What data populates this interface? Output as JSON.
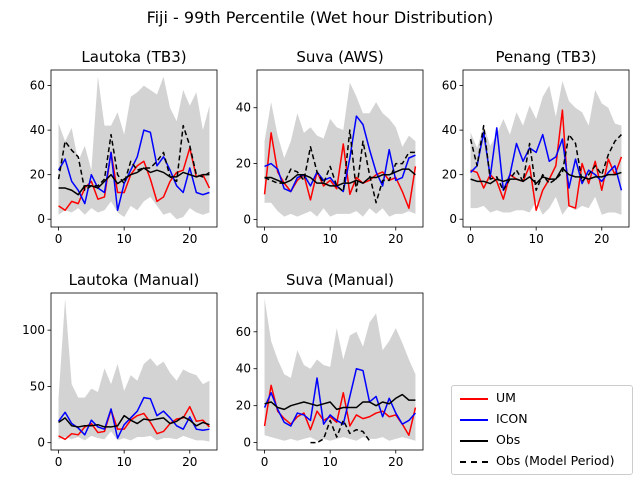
{
  "figure": {
    "title": "Fiji - 99th Percentile (Wet hour Distribution)"
  },
  "legend": {
    "entries": [
      {
        "label": "UM",
        "color": "#ff0000",
        "style": "solid"
      },
      {
        "label": "ICON",
        "color": "#0000ff",
        "style": "solid"
      },
      {
        "label": "Obs",
        "color": "#000000",
        "style": "solid"
      },
      {
        "label": "Obs (Model Period)",
        "color": "#000000",
        "style": "dashed"
      }
    ]
  },
  "colors": {
    "band": "#d3d3d3",
    "um": "#ff0000",
    "icon": "#0000ff",
    "obs": "#000000"
  },
  "chart_data": [
    {
      "type": "line",
      "title": "Lautoka (TB3)",
      "xlim": [
        -1.15,
        24.15
      ],
      "ylim": [
        -3.5,
        67
      ],
      "xticks": [
        0,
        10,
        20
      ],
      "yticks": [
        0,
        20,
        40,
        60
      ],
      "x": [
        0,
        1,
        2,
        3,
        4,
        5,
        6,
        7,
        8,
        9,
        10,
        11,
        12,
        13,
        14,
        15,
        16,
        17,
        18,
        19,
        20,
        21,
        22,
        23
      ],
      "band_upper": [
        43,
        35,
        41,
        26,
        33,
        22,
        64,
        42,
        42,
        48,
        38,
        55,
        57,
        60,
        58,
        56,
        64,
        50,
        44,
        58,
        51,
        57,
        40,
        51
      ],
      "band_lower": [
        2,
        4,
        3,
        5,
        2,
        5,
        3,
        4,
        8,
        3,
        1,
        6,
        4,
        8,
        10,
        6,
        2,
        3,
        0,
        1,
        5,
        3,
        2,
        3
      ],
      "series": [
        {
          "name": "UM",
          "values": [
            6,
            4,
            8,
            7,
            14,
            17,
            9,
            10,
            30,
            12,
            12,
            20,
            24,
            26,
            18,
            8,
            10,
            17,
            21,
            22,
            32,
            19,
            20,
            14
          ]
        },
        {
          "name": "ICON",
          "values": [
            22,
            27,
            17,
            13,
            7,
            20,
            14,
            12,
            30,
            4,
            16,
            22,
            28,
            40,
            39,
            24,
            28,
            22,
            15,
            12,
            23,
            12,
            11,
            12
          ]
        },
        {
          "name": "Obs",
          "values": [
            14,
            14,
            13,
            11,
            15,
            15,
            14,
            17,
            20,
            16,
            18,
            20,
            21,
            23,
            21,
            22,
            21,
            19,
            19,
            21,
            20,
            19,
            20,
            20
          ]
        },
        {
          "name": "Obs (Model Period)",
          "values": [
            18,
            35,
            31,
            28,
            13,
            15,
            15,
            18,
            38,
            20,
            16,
            26,
            22,
            23,
            23,
            26,
            30,
            19,
            17,
            42,
            33,
            20,
            19,
            21
          ]
        }
      ]
    },
    {
      "type": "line",
      "title": "Suva (AWS)",
      "xlim": [
        -1.15,
        24.15
      ],
      "ylim": [
        -2.7,
        53.5
      ],
      "xticks": [
        0,
        10,
        20
      ],
      "yticks": [
        0,
        20,
        40
      ],
      "x": [
        0,
        1,
        2,
        3,
        4,
        5,
        6,
        7,
        8,
        9,
        10,
        11,
        12,
        13,
        14,
        15,
        16,
        17,
        18,
        19,
        20,
        21,
        22,
        23
      ],
      "band_upper": [
        28,
        42,
        30,
        22,
        28,
        38,
        31,
        33,
        30,
        29,
        36,
        33,
        32,
        49,
        44,
        38,
        38,
        42,
        38,
        36,
        33,
        26,
        30,
        28
      ],
      "band_lower": [
        6,
        6,
        3,
        1,
        2,
        1,
        2,
        3,
        1,
        4,
        1,
        2,
        2,
        2,
        3,
        1,
        4,
        2,
        4,
        1,
        2,
        2,
        3,
        2
      ],
      "series": [
        {
          "name": "UM",
          "values": [
            9,
            31,
            17,
            13,
            10,
            14,
            16,
            7,
            17,
            12,
            14,
            11,
            27,
            9,
            15,
            13,
            14,
            16,
            17,
            14,
            15,
            10,
            4,
            19
          ]
        },
        {
          "name": "ICON",
          "values": [
            19,
            20,
            18,
            11,
            10,
            15,
            16,
            12,
            17,
            14,
            15,
            12,
            10,
            22,
            37,
            34,
            25,
            17,
            12,
            25,
            14,
            15,
            22,
            23
          ]
        },
        {
          "name": "Obs",
          "values": [
            15,
            15,
            14,
            13,
            14,
            16,
            16,
            15,
            13,
            13,
            12,
            12,
            13,
            13,
            14,
            13,
            15,
            15,
            16,
            16,
            17,
            18,
            18,
            16
          ]
        },
        {
          "name": "Obs (Model Period)",
          "values": [
            15,
            14,
            13,
            13,
            18,
            17,
            14,
            26,
            17,
            13,
            19,
            12,
            10,
            32,
            10,
            28,
            16,
            6,
            14,
            14,
            20,
            20,
            24,
            24
          ]
        }
      ]
    },
    {
      "type": "line",
      "title": "Penang (TB3)",
      "xlim": [
        -1.15,
        24.15
      ],
      "ylim": [
        -3.5,
        67
      ],
      "xticks": [
        0,
        10,
        20
      ],
      "yticks": [
        0,
        20,
        40,
        60
      ],
      "x": [
        0,
        1,
        2,
        3,
        4,
        5,
        6,
        7,
        8,
        9,
        10,
        11,
        12,
        13,
        14,
        15,
        16,
        17,
        18,
        19,
        20,
        21,
        22,
        23
      ],
      "band_upper": [
        39,
        32,
        42,
        33,
        38,
        45,
        38,
        48,
        42,
        51,
        45,
        55,
        60,
        46,
        62,
        53,
        50,
        48,
        42,
        58,
        52,
        50,
        43,
        42
      ],
      "band_lower": [
        5,
        5,
        6,
        3,
        4,
        3,
        3,
        4,
        4,
        3,
        8,
        2,
        5,
        10,
        2,
        6,
        4,
        6,
        5,
        10,
        2,
        3,
        3,
        2
      ],
      "series": [
        {
          "name": "UM",
          "values": [
            22,
            21,
            14,
            20,
            17,
            9,
            20,
            18,
            17,
            24,
            4,
            13,
            18,
            24,
            49,
            6,
            5,
            25,
            16,
            26,
            13,
            27,
            20,
            28
          ]
        },
        {
          "name": "ICON",
          "values": [
            21,
            24,
            39,
            19,
            41,
            13,
            20,
            34,
            26,
            32,
            30,
            38,
            26,
            28,
            36,
            14,
            27,
            16,
            22,
            20,
            17,
            21,
            24,
            13
          ]
        },
        {
          "name": "Obs",
          "values": [
            18,
            17,
            17,
            16,
            18,
            17,
            18,
            18,
            17,
            19,
            16,
            19,
            18,
            18,
            23,
            20,
            19,
            19,
            18,
            19,
            19,
            20,
            20,
            21
          ]
        },
        {
          "name": "Obs (Model Period)",
          "values": [
            36,
            24,
            42,
            18,
            19,
            13,
            18,
            22,
            17,
            34,
            13,
            20,
            16,
            18,
            21,
            38,
            34,
            17,
            20,
            24,
            20,
            29,
            35,
            38
          ]
        }
      ]
    },
    {
      "type": "line",
      "title": "Lautoka (Manual)",
      "xlim": [
        -1.15,
        24.15
      ],
      "ylim": [
        -6.5,
        133
      ],
      "xticks": [
        0,
        10,
        20
      ],
      "yticks": [
        0,
        50,
        100
      ],
      "x": [
        0,
        1,
        2,
        3,
        4,
        5,
        6,
        7,
        8,
        9,
        10,
        11,
        12,
        13,
        14,
        15,
        16,
        17,
        18,
        19,
        20,
        21,
        22,
        23
      ],
      "band_upper": [
        40,
        128,
        52,
        40,
        40,
        48,
        45,
        66,
        52,
        70,
        46,
        60,
        55,
        70,
        75,
        68,
        72,
        62,
        55,
        65,
        62,
        60,
        52,
        55
      ],
      "band_lower": [
        3,
        5,
        3,
        5,
        2,
        6,
        4,
        3,
        10,
        2,
        4,
        2,
        5,
        5,
        6,
        2,
        4,
        4,
        3,
        6,
        4,
        2,
        2,
        1
      ],
      "series": [
        {
          "name": "UM",
          "values": [
            6,
            3,
            8,
            7,
            14,
            17,
            9,
            10,
            29,
            12,
            12,
            20,
            24,
            26,
            18,
            8,
            10,
            17,
            21,
            22,
            32,
            19,
            20,
            14
          ]
        },
        {
          "name": "ICON",
          "values": [
            19,
            27,
            17,
            13,
            7,
            20,
            14,
            12,
            30,
            4,
            16,
            22,
            28,
            40,
            39,
            24,
            28,
            22,
            15,
            12,
            23,
            12,
            11,
            12
          ]
        },
        {
          "name": "Obs",
          "values": [
            18,
            22,
            15,
            14,
            15,
            15,
            16,
            14,
            14,
            15,
            24,
            20,
            17,
            21,
            20,
            21,
            22,
            17,
            19,
            23,
            20,
            15,
            18,
            16
          ]
        }
      ]
    },
    {
      "type": "line",
      "title": "Suva (Manual)",
      "xlim": [
        -1.15,
        24.15
      ],
      "ylim": [
        -4,
        81
      ],
      "xticks": [
        0,
        10,
        20
      ],
      "yticks": [
        0,
        20,
        40,
        60
      ],
      "x": [
        0,
        1,
        2,
        3,
        4,
        5,
        6,
        7,
        8,
        9,
        10,
        11,
        12,
        13,
        14,
        15,
        16,
        17,
        18,
        19,
        20,
        21,
        22,
        23
      ],
      "band_upper": [
        78,
        55,
        45,
        37,
        35,
        50,
        42,
        40,
        45,
        42,
        41,
        62,
        45,
        58,
        60,
        52,
        65,
        70,
        50,
        55,
        62,
        54,
        45,
        37
      ],
      "band_lower": [
        4,
        3,
        2,
        1,
        2,
        1,
        2,
        3,
        1,
        2,
        1,
        2,
        3,
        2,
        1,
        3,
        2,
        2,
        3,
        1,
        2,
        3,
        2,
        1
      ],
      "series": [
        {
          "name": "UM",
          "values": [
            9,
            31,
            17,
            13,
            10,
            14,
            16,
            7,
            17,
            12,
            14,
            11,
            27,
            9,
            15,
            13,
            14,
            16,
            17,
            14,
            15,
            10,
            4,
            19
          ]
        },
        {
          "name": "ICON",
          "values": [
            19,
            27,
            18,
            11,
            9,
            16,
            15,
            12,
            35,
            10,
            15,
            12,
            10,
            25,
            40,
            39,
            22,
            25,
            14,
            24,
            16,
            10,
            12,
            16
          ]
        },
        {
          "name": "Obs",
          "values": [
            21,
            22,
            19,
            18,
            20,
            21,
            22,
            21,
            20,
            21,
            22,
            18,
            19,
            19,
            19,
            22,
            22,
            20,
            22,
            21,
            24,
            26,
            23,
            23
          ]
        },
        {
          "name": "Obs (Model Period)",
          "x": [
            7,
            8,
            9,
            10,
            11,
            12,
            13,
            14,
            15,
            16
          ],
          "values": [
            0,
            0,
            2,
            12,
            3,
            12,
            5,
            7,
            6,
            1
          ]
        }
      ]
    }
  ]
}
